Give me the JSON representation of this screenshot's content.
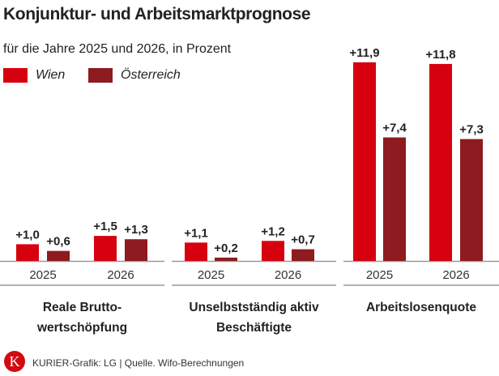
{
  "header": {
    "title": "Konjunktur- und Arbeitsmarktprognose",
    "subtitle": "für die Jahre 2025 und 2026, in Prozent"
  },
  "footer": {
    "credit": "KURIER-Grafik: LG | Quelle. Wifo-Berechnungen",
    "logo_letter": "K"
  },
  "chart_data": {
    "type": "bar",
    "title": "Konjunktur- und Arbeitsmarktprognose",
    "subtitle": "für die Jahre 2025 und 2026, in Prozent",
    "legend": {
      "placement": "top-left",
      "entries": [
        {
          "name": "Wien",
          "color": "#d7000f"
        },
        {
          "name": "Österreich",
          "color": "#8e1b1f"
        }
      ]
    },
    "groups": [
      {
        "label": "Reale Brutto-\nwertschöpfung",
        "categories": [
          "2025",
          "2026"
        ],
        "series": [
          {
            "name": "Wien",
            "values": [
              1.0,
              1.5
            ]
          },
          {
            "name": "Österreich",
            "values": [
              0.6,
              1.3
            ]
          }
        ],
        "labels": [
          [
            "+1,0",
            "+1,5"
          ],
          [
            "+0,6",
            "+1,3"
          ]
        ]
      },
      {
        "label": "Unselbstständig aktiv\nBeschäftigte",
        "categories": [
          "2025",
          "2026"
        ],
        "series": [
          {
            "name": "Wien",
            "values": [
              1.1,
              1.2
            ]
          },
          {
            "name": "Österreich",
            "values": [
              0.2,
              0.7
            ]
          }
        ],
        "labels": [
          [
            "+1,1",
            "+1,2"
          ],
          [
            "+0,2",
            "+0,7"
          ]
        ]
      },
      {
        "label": "Arbeitslosenquote",
        "categories": [
          "2025",
          "2026"
        ],
        "series": [
          {
            "name": "Wien",
            "values": [
              11.9,
              11.8
            ]
          },
          {
            "name": "Österreich",
            "values": [
              7.4,
              7.3
            ]
          }
        ],
        "labels": [
          [
            "+11,9",
            "+11,8"
          ],
          [
            "+7,4",
            "+7,3"
          ]
        ]
      }
    ],
    "grid": false
  }
}
